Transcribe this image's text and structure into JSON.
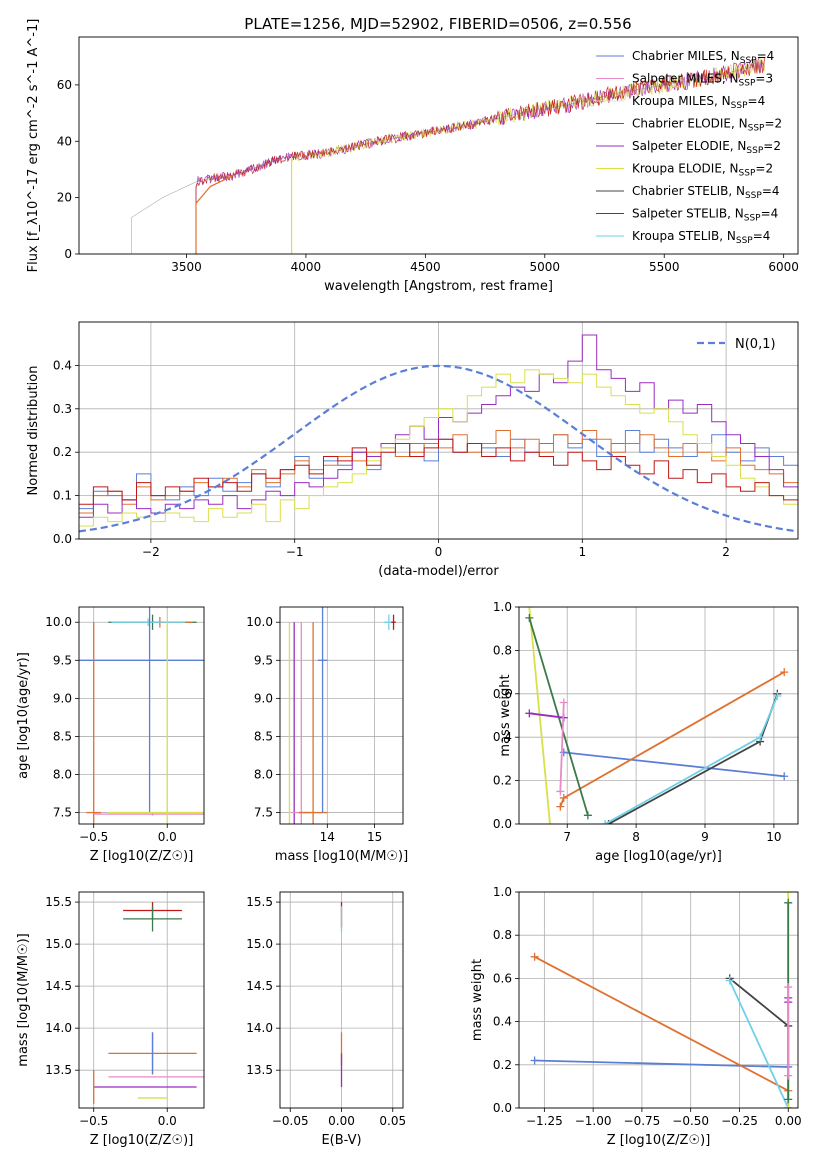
{
  "figure_title": "PLATE=1256, MJD=52902, FIBERID=0506, z=0.556",
  "series_styles": [
    {
      "name": "Chabrier MILES",
      "color": "#5b7fd6",
      "nssp": "4"
    },
    {
      "name": "Salpeter MILES",
      "color": "#e88ac8",
      "nssp": "3"
    },
    {
      "name": "Kroupa MILES",
      "color": "#e0e0e0",
      "nssp": "4"
    },
    {
      "name": "Chabrier ELODIE",
      "color": "#3a7a4a",
      "nssp": "2"
    },
    {
      "name": "Salpeter ELODIE",
      "color": "#9a2cc0",
      "nssp": "2"
    },
    {
      "name": "Kroupa ELODIE",
      "color": "#d8e04a",
      "nssp": "2"
    },
    {
      "name": "Chabrier STELIB",
      "color": "#444444",
      "nssp": "4"
    },
    {
      "name": "Salpeter STELIB",
      "color": "#c01818",
      "nssp": "4"
    },
    {
      "name": "Kroupa STELIB",
      "color": "#70d0e8",
      "nssp": "4"
    }
  ],
  "chart_data": [
    {
      "id": "spectrum",
      "type": "line",
      "title": "PLATE=1256, MJD=52902, FIBERID=0506, z=0.556",
      "xlabel": "wavelength [Angstrom, rest frame]",
      "ylabel": "Flux [f_λ10^-17 erg cm^-2 s^-1 A^-1]",
      "xlim": [
        3050,
        6060
      ],
      "ylim": [
        0,
        77
      ],
      "xticks": [
        3500,
        4000,
        4500,
        5000,
        5500,
        6000
      ],
      "yticks": [
        0,
        20,
        40,
        60
      ],
      "grid": false,
      "legend": "top-right",
      "legend_entries": [
        "Chabrier MILES, N_SSP=4",
        "Salpeter MILES, N_SSP=3",
        "Kroupa MILES, N_SSP=4",
        "Chabrier ELODIE, N_SSP=2",
        "Salpeter ELODIE, N_SSP=2",
        "Kroupa ELODIE, N_SSP=2",
        "Chabrier STELIB, N_SSP=4",
        "Salpeter STELIB, N_SSP=4",
        "Kroupa STELIB, N_SSP=4"
      ],
      "series": [
        {
          "name": "data",
          "points": [
            [
              3270,
              0
            ],
            [
              3270,
              13
            ],
            [
              3400,
              20
            ],
            [
              3550,
              26
            ],
            [
              3700,
              28
            ],
            [
              3900,
              34
            ],
            [
              4100,
              36
            ],
            [
              4300,
              40
            ],
            [
              4500,
              43
            ],
            [
              4700,
              46
            ],
            [
              4900,
              50
            ],
            [
              5100,
              53
            ],
            [
              5300,
              57
            ],
            [
              5500,
              60
            ],
            [
              5700,
              63
            ],
            [
              5900,
              67
            ]
          ]
        },
        {
          "name": "model start 3540",
          "color": "#e07030",
          "points": [
            [
              3540,
              0
            ],
            [
              3540,
              18
            ],
            [
              3600,
              24
            ],
            [
              3700,
              28
            ]
          ]
        },
        {
          "name": "model start 3940",
          "color": "#d8e04a",
          "points": [
            [
              3940,
              0
            ],
            [
              3940,
              34
            ]
          ]
        }
      ]
    },
    {
      "id": "residuals",
      "type": "histogram",
      "xlabel": "(data-model)/error",
      "ylabel": "Normed distribution",
      "xlim": [
        -2.5,
        2.5
      ],
      "ylim": [
        0,
        0.5
      ],
      "xticks": [
        -2,
        -1,
        0,
        1,
        2
      ],
      "yticks": [
        0.0,
        0.1,
        0.2,
        0.3,
        0.4
      ],
      "grid": true,
      "legend": "top-right",
      "legend_entries": [
        "N(0,1)"
      ],
      "bin_width": 0.1,
      "hist_series": [
        {
          "color": "#5b7fd6",
          "values": [
            0.07,
            0.11,
            0.1,
            0.09,
            0.15,
            0.1,
            0.09,
            0.12,
            0.1,
            0.14,
            0.11,
            0.13,
            0.15,
            0.12,
            0.16,
            0.19,
            0.14,
            0.18,
            0.17,
            0.2,
            0.16,
            0.21,
            0.19,
            0.22,
            0.18,
            0.23,
            0.2,
            0.22,
            0.21,
            0.19,
            0.23,
            0.2,
            0.22,
            0.24,
            0.21,
            0.23,
            0.19,
            0.22,
            0.25,
            0.2,
            0.23,
            0.21,
            0.19,
            0.22,
            0.24,
            0.2,
            0.18,
            0.21,
            0.19,
            0.17
          ]
        },
        {
          "color": "#e07030",
          "values": [
            0.06,
            0.1,
            0.11,
            0.08,
            0.12,
            0.09,
            0.1,
            0.11,
            0.13,
            0.12,
            0.14,
            0.12,
            0.16,
            0.13,
            0.15,
            0.18,
            0.16,
            0.17,
            0.19,
            0.18,
            0.2,
            0.21,
            0.19,
            0.2,
            0.22,
            0.21,
            0.24,
            0.2,
            0.22,
            0.25,
            0.21,
            0.23,
            0.2,
            0.24,
            0.22,
            0.25,
            0.23,
            0.2,
            0.22,
            0.24,
            0.21,
            0.19,
            0.22,
            0.2,
            0.18,
            0.21,
            0.17,
            0.16,
            0.15,
            0.13
          ]
        },
        {
          "color": "#9a2cc0",
          "values": [
            0.05,
            0.08,
            0.06,
            0.09,
            0.07,
            0.06,
            0.08,
            0.07,
            0.09,
            0.08,
            0.1,
            0.07,
            0.09,
            0.11,
            0.1,
            0.13,
            0.12,
            0.14,
            0.16,
            0.2,
            0.19,
            0.22,
            0.24,
            0.26,
            0.23,
            0.28,
            0.27,
            0.29,
            0.31,
            0.33,
            0.35,
            0.34,
            0.38,
            0.36,
            0.41,
            0.47,
            0.39,
            0.37,
            0.34,
            0.36,
            0.3,
            0.32,
            0.29,
            0.31,
            0.27,
            0.24,
            0.22,
            0.19,
            0.16,
            0.12
          ]
        },
        {
          "color": "#d8e04a",
          "values": [
            0.03,
            0.05,
            0.04,
            0.06,
            0.05,
            0.04,
            0.06,
            0.05,
            0.04,
            0.07,
            0.05,
            0.06,
            0.08,
            0.04,
            0.09,
            0.07,
            0.1,
            0.12,
            0.13,
            0.15,
            0.18,
            0.21,
            0.23,
            0.26,
            0.28,
            0.3,
            0.27,
            0.33,
            0.35,
            0.38,
            0.36,
            0.39,
            0.38,
            0.37,
            0.36,
            0.38,
            0.35,
            0.33,
            0.31,
            0.29,
            0.3,
            0.27,
            0.24,
            0.22,
            0.19,
            0.17,
            0.14,
            0.12,
            0.1,
            0.08
          ]
        },
        {
          "color": "#c01818",
          "values": [
            0.08,
            0.12,
            0.11,
            0.09,
            0.13,
            0.1,
            0.12,
            0.11,
            0.14,
            0.12,
            0.13,
            0.11,
            0.15,
            0.14,
            0.16,
            0.17,
            0.15,
            0.19,
            0.18,
            0.21,
            0.17,
            0.2,
            0.22,
            0.19,
            0.21,
            0.23,
            0.2,
            0.22,
            0.19,
            0.21,
            0.18,
            0.2,
            0.19,
            0.17,
            0.2,
            0.18,
            0.16,
            0.19,
            0.17,
            0.15,
            0.18,
            0.14,
            0.16,
            0.13,
            0.15,
            0.12,
            0.11,
            0.13,
            0.1,
            0.09
          ]
        }
      ],
      "reference": {
        "name": "N(0,1)",
        "type": "gaussian",
        "mean": 0,
        "sigma": 1,
        "color": "#5b7fd6"
      }
    },
    {
      "id": "age_vs_Z",
      "type": "errorbar",
      "xlabel": "Z [log10(Z/Z☉)]",
      "ylabel": "age [log10(age/yr)]",
      "xlim": [
        -0.6,
        0.25
      ],
      "ylim": [
        7.35,
        10.2
      ],
      "xticks": [
        -0.5,
        0.0
      ],
      "yticks": [
        7.5,
        8.0,
        8.5,
        9.0,
        9.5,
        10.0
      ],
      "grid": true,
      "points": [
        {
          "x": -0.1,
          "y": 10.0,
          "xerr": 0.3,
          "yerr": 0.1,
          "color": "#3a7a4a"
        },
        {
          "x": -0.05,
          "y": 10.0,
          "xerr": 0.22,
          "yerr": 0.07,
          "color": "#e07030"
        },
        {
          "x": -0.13,
          "y": 10.0,
          "xerr": 0.25,
          "yerr": 0.05,
          "color": "#70d0e8"
        },
        {
          "x": -0.12,
          "y": 9.5,
          "xerr": 0.5,
          "yerr": 2.0,
          "color": "#5b7fd6"
        },
        {
          "x": -0.5,
          "y": 7.5,
          "xerr": 0.05,
          "yerr": 2.5,
          "color": "#e07030"
        },
        {
          "x": -0.1,
          "y": 7.48,
          "xerr": 0.4,
          "yerr": 0.02,
          "color": "#e88ac8"
        },
        {
          "x": 0.0,
          "y": 7.5,
          "xerr": 0.4,
          "yerr": 2.5,
          "color": "#d8e04a"
        }
      ]
    },
    {
      "id": "age_vs_mass",
      "type": "errorbar",
      "xlabel": "mass [log10(M/M☉)]",
      "ylabel": "",
      "xlim": [
        13.0,
        15.6
      ],
      "ylim": [
        7.35,
        10.2
      ],
      "xticks": [
        14,
        15
      ],
      "yticks": [
        7.5,
        8.0,
        8.5,
        9.0,
        9.5,
        10.0
      ],
      "grid": true,
      "points": [
        {
          "x": 13.2,
          "y": 7.5,
          "xerr": 0.0,
          "yerr": 2.5,
          "color": "#d8e04a"
        },
        {
          "x": 13.3,
          "y": 7.5,
          "xerr": 0.0,
          "yerr": 2.5,
          "color": "#9a2cc0"
        },
        {
          "x": 13.45,
          "y": 7.5,
          "xerr": 0.2,
          "yerr": 2.5,
          "color": "#e88ac8"
        },
        {
          "x": 13.7,
          "y": 7.5,
          "xerr": 0.3,
          "yerr": 2.5,
          "color": "#e07030"
        },
        {
          "x": 13.9,
          "y": 9.5,
          "xerr": 0.1,
          "yerr": 2.0,
          "color": "#5b7fd6"
        },
        {
          "x": 15.3,
          "y": 10.0,
          "xerr": 0.1,
          "yerr": 0.1,
          "color": "#70d0e8"
        },
        {
          "x": 15.4,
          "y": 10.0,
          "xerr": 0.05,
          "yerr": 0.1,
          "color": "#c01818"
        }
      ]
    },
    {
      "id": "weight_vs_age",
      "type": "line",
      "xlabel": "age [log10(age/yr)]",
      "ylabel": "mass weight",
      "xlim": [
        6.3,
        10.35
      ],
      "ylim": [
        0,
        1.0
      ],
      "xticks": [
        7,
        8,
        9,
        10
      ],
      "yticks": [
        0.0,
        0.2,
        0.4,
        0.6,
        0.8,
        1.0
      ],
      "grid": true,
      "series": [
        {
          "color": "#5b7fd6",
          "points": [
            [
              6.95,
              0.33
            ],
            [
              10.15,
              0.22
            ]
          ]
        },
        {
          "color": "#e07030",
          "points": [
            [
              6.9,
              0.08
            ],
            [
              6.95,
              0.12
            ],
            [
              10.15,
              0.7
            ]
          ]
        },
        {
          "color": "#d8e04a",
          "points": [
            [
              6.45,
              1.0
            ],
            [
              6.75,
              0.0
            ]
          ]
        },
        {
          "color": "#3a7a4a",
          "points": [
            [
              6.45,
              0.95
            ],
            [
              7.3,
              0.04
            ]
          ]
        },
        {
          "color": "#9a2cc0",
          "points": [
            [
              6.45,
              0.51
            ],
            [
              6.95,
              0.49
            ]
          ]
        },
        {
          "color": "#e88ac8",
          "points": [
            [
              6.9,
              0.15
            ],
            [
              6.95,
              0.56
            ]
          ]
        },
        {
          "color": "#444444",
          "points": [
            [
              7.6,
              0.0
            ],
            [
              9.8,
              0.38
            ],
            [
              10.05,
              0.6
            ]
          ]
        },
        {
          "color": "#70d0e8",
          "points": [
            [
              7.55,
              0.0
            ],
            [
              9.8,
              0.4
            ],
            [
              10.05,
              0.59
            ]
          ]
        }
      ]
    },
    {
      "id": "mass_vs_Z",
      "type": "errorbar",
      "xlabel": "Z [log10(Z/Z☉)]",
      "ylabel": "mass [log10(M/M☉)]",
      "xlim": [
        -0.6,
        0.25
      ],
      "ylim": [
        13.05,
        15.62
      ],
      "xticks": [
        -0.5,
        0.0
      ],
      "yticks": [
        13.5,
        14.0,
        14.5,
        15.0,
        15.5
      ],
      "grid": true,
      "points": [
        {
          "x": -0.1,
          "y": 15.4,
          "xerr": 0.2,
          "yerr": 0.1,
          "color": "#c01818"
        },
        {
          "x": -0.1,
          "y": 15.3,
          "xerr": 0.2,
          "yerr": 0.15,
          "color": "#3a7a4a"
        },
        {
          "x": -0.1,
          "y": 13.7,
          "xerr": 0.3,
          "yerr": 0.25,
          "color": "#e07030"
        },
        {
          "x": -0.1,
          "y": 13.7,
          "xerr": 0.0,
          "yerr": 0.25,
          "color": "#5b7fd6"
        },
        {
          "x": -0.05,
          "y": 13.42,
          "xerr": 0.35,
          "yerr": 0.0,
          "color": "#e88ac8"
        },
        {
          "x": -0.15,
          "y": 13.3,
          "xerr": 0.35,
          "yerr": 0.0,
          "color": "#9a2cc0"
        },
        {
          "x": -0.1,
          "y": 13.3,
          "xerr": 0.0,
          "yerr": 0.0,
          "color": "#5b7fd6"
        },
        {
          "x": -0.1,
          "y": 13.17,
          "xerr": 0.1,
          "yerr": 0.0,
          "color": "#d8e04a"
        },
        {
          "x": -0.5,
          "y": 13.3,
          "xerr": 0.0,
          "yerr": 0.2,
          "color": "#e07030"
        }
      ]
    },
    {
      "id": "mass_vs_EBV",
      "type": "errorbar",
      "xlabel": "E(B-V)",
      "ylabel": "",
      "xlim": [
        -0.06,
        0.06
      ],
      "ylim": [
        13.05,
        15.62
      ],
      "xticks": [
        -0.05,
        0.0,
        0.05
      ],
      "yticks": [
        13.5,
        14.0,
        14.5,
        15.0,
        15.5
      ],
      "grid": true,
      "points": [
        {
          "x": 0.0,
          "y": 15.35,
          "xerr": 0.0,
          "yerr": 0.15,
          "color": "#c01818"
        },
        {
          "x": 0.0,
          "y": 15.3,
          "xerr": 0.0,
          "yerr": 0.15,
          "color": "#70d0e8"
        },
        {
          "x": 0.0,
          "y": 13.75,
          "xerr": 0.0,
          "yerr": 0.2,
          "color": "#e07030"
        },
        {
          "x": 0.0,
          "y": 13.5,
          "xerr": 0.0,
          "yerr": 0.2,
          "color": "#9a2cc0"
        }
      ]
    },
    {
      "id": "weight_vs_Z",
      "type": "line",
      "xlabel": "Z [log10(Z/Z☉)]",
      "ylabel": "mass weight",
      "xlim": [
        -1.38,
        0.05
      ],
      "ylim": [
        0,
        1.0
      ],
      "xticks": [
        -1.25,
        -1.0,
        -0.75,
        -0.5,
        -0.25,
        0.0
      ],
      "yticks": [
        0.0,
        0.2,
        0.4,
        0.6,
        0.8,
        1.0
      ],
      "grid": true,
      "series": [
        {
          "color": "#5b7fd6",
          "points": [
            [
              -1.3,
              0.22
            ],
            [
              0.0,
              0.19
            ]
          ]
        },
        {
          "color": "#e07030",
          "points": [
            [
              -1.3,
              0.7
            ],
            [
              0.0,
              0.08
            ]
          ]
        },
        {
          "color": "#444444",
          "points": [
            [
              -0.3,
              0.6
            ],
            [
              0.0,
              0.38
            ],
            [
              0.0,
              0.0
            ]
          ]
        },
        {
          "color": "#70d0e8",
          "points": [
            [
              -0.3,
              0.59
            ],
            [
              0.0,
              0.0
            ]
          ]
        },
        {
          "color": "#d8e04a",
          "points": [
            [
              0.0,
              1.0
            ],
            [
              0.0,
              0.0
            ]
          ]
        },
        {
          "color": "#3a7a4a",
          "points": [
            [
              0.0,
              0.95
            ],
            [
              0.0,
              0.04
            ]
          ]
        },
        {
          "color": "#9a2cc0",
          "points": [
            [
              0.0,
              0.51
            ],
            [
              0.0,
              0.49
            ]
          ]
        },
        {
          "color": "#e88ac8",
          "points": [
            [
              0.0,
              0.56
            ],
            [
              0.0,
              0.15
            ]
          ]
        }
      ]
    }
  ]
}
